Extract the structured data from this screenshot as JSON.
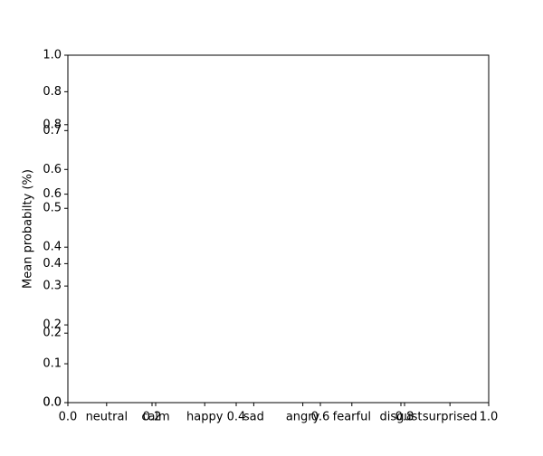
{
  "chart_data": [
    {
      "type": "bar",
      "ylabel": "Mean probabilty (%)",
      "categories": [
        "neutral",
        "calm",
        "happy",
        "sad",
        "angry",
        "fearful",
        "disgust",
        "surprised"
      ],
      "xlim": [
        -0.79,
        7.79
      ],
      "ylim": [
        0,
        0.894
      ],
      "yticks": [
        {
          "value": 0,
          "label": "0.0"
        },
        0.1,
        0.2,
        0.3,
        0.4,
        0.5,
        0.6,
        0.7,
        0.8
      ]
    },
    {
      "type": "axes",
      "xlim": [
        0,
        1
      ],
      "ylim": [
        0,
        1
      ],
      "xticks": [
        {
          "value": 0,
          "label": "0.0"
        },
        0.2,
        0.4,
        0.6,
        0.8,
        {
          "value": 1,
          "label": "1.0"
        }
      ],
      "yticks": [
        {
          "value": 0,
          "label": "0.0"
        },
        0.2,
        0.4,
        0.6,
        0.8,
        {
          "value": 1,
          "label": "1.0"
        }
      ]
    }
  ]
}
